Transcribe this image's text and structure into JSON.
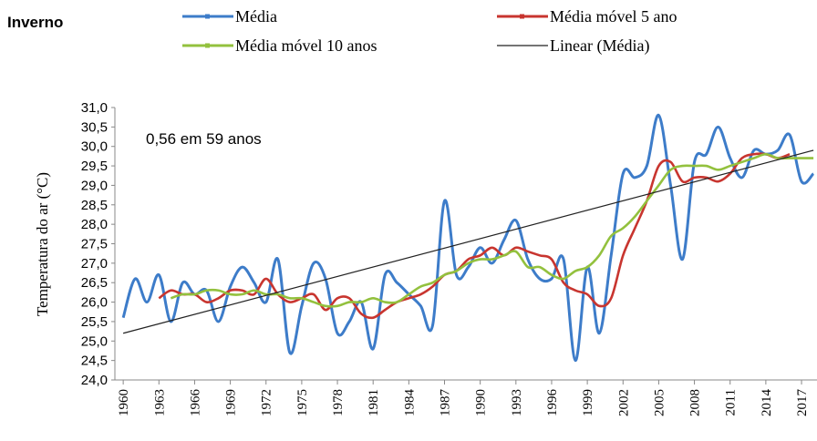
{
  "chart_data": {
    "type": "line",
    "title": "Inverno",
    "y_label": "Temperatura do ar (°C)",
    "annotation": "0,56 em 59 anos",
    "x": [
      1960,
      1961,
      1962,
      1963,
      1964,
      1965,
      1966,
      1967,
      1968,
      1969,
      1970,
      1971,
      1972,
      1973,
      1974,
      1975,
      1976,
      1977,
      1978,
      1979,
      1980,
      1981,
      1982,
      1983,
      1984,
      1985,
      1986,
      1987,
      1988,
      1989,
      1990,
      1991,
      1992,
      1993,
      1994,
      1995,
      1996,
      1997,
      1998,
      1999,
      2000,
      2001,
      2002,
      2003,
      2004,
      2005,
      2006,
      2007,
      2008,
      2009,
      2010,
      2011,
      2012,
      2013,
      2014,
      2015,
      2016,
      2017,
      2018
    ],
    "xlim": [
      1959.3,
      2018.3
    ],
    "xticks": [
      1960,
      1963,
      1966,
      1969,
      1972,
      1975,
      1978,
      1981,
      1984,
      1987,
      1990,
      1993,
      1996,
      1999,
      2002,
      2005,
      2008,
      2011,
      2014,
      2017
    ],
    "ylim": [
      24,
      31
    ],
    "yticks": [
      {
        "value": 24,
        "label": "24,0"
      },
      {
        "value": 24.5,
        "label": "24,5"
      },
      {
        "value": 25,
        "label": "25,0"
      },
      {
        "value": 25.5,
        "label": "25,5"
      },
      {
        "value": 26,
        "label": "26,0"
      },
      {
        "value": 26.5,
        "label": "26,5"
      },
      {
        "value": 27,
        "label": "27,0"
      },
      {
        "value": 27.5,
        "label": "27,5"
      },
      {
        "value": 28,
        "label": "28,0"
      },
      {
        "value": 28.5,
        "label": "28,5"
      },
      {
        "value": 29,
        "label": "29,0"
      },
      {
        "value": 29.5,
        "label": "29,5"
      },
      {
        "value": 30,
        "label": "30,0"
      },
      {
        "value": 30.5,
        "label": "30,5"
      },
      {
        "value": 31,
        "label": "31,0"
      }
    ],
    "grid": false,
    "series": [
      {
        "name": "Média",
        "color": "#3d7cc9",
        "values": [
          25.6,
          26.6,
          26.0,
          26.7,
          25.5,
          26.5,
          26.2,
          26.3,
          25.5,
          26.4,
          26.9,
          26.5,
          26.0,
          27.1,
          24.7,
          25.9,
          27.0,
          26.6,
          25.2,
          25.5,
          26.0,
          24.8,
          26.7,
          26.5,
          26.2,
          25.9,
          25.4,
          28.6,
          26.7,
          26.9,
          27.4,
          27.0,
          27.6,
          28.1,
          27.1,
          26.6,
          26.6,
          27.1,
          24.5,
          26.9,
          25.2,
          27.2,
          29.3,
          29.2,
          29.5,
          30.8,
          29.0,
          27.1,
          29.6,
          29.8,
          30.5,
          29.7,
          29.2,
          29.9,
          29.8,
          29.9,
          30.3,
          29.1,
          29.3
        ]
      },
      {
        "name": "Média móvel 5 ano",
        "color": "#c8352f",
        "values": [
          null,
          null,
          null,
          26.1,
          26.3,
          26.2,
          26.2,
          26.0,
          26.1,
          26.3,
          26.3,
          26.2,
          26.6,
          26.2,
          26.0,
          26.1,
          26.2,
          25.8,
          26.1,
          26.1,
          25.7,
          25.6,
          25.8,
          26.0,
          26.1,
          26.2,
          26.4,
          26.7,
          26.8,
          27.1,
          27.2,
          27.4,
          27.2,
          27.4,
          27.3,
          27.2,
          27.1,
          26.5,
          26.3,
          26.2,
          25.9,
          26.1,
          27.2,
          27.9,
          28.6,
          29.5,
          29.6,
          29.1,
          29.2,
          29.2,
          29.1,
          29.3,
          29.7,
          29.8,
          29.8,
          29.7,
          29.8,
          null,
          null
        ]
      },
      {
        "name": "Média móvel 10 anos",
        "color": "#93c13e",
        "values": [
          null,
          null,
          null,
          null,
          26.1,
          26.2,
          26.2,
          26.3,
          26.3,
          26.2,
          26.2,
          26.3,
          26.2,
          26.2,
          26.1,
          26.1,
          26.0,
          25.9,
          25.9,
          26.0,
          26.0,
          26.1,
          26.0,
          26.0,
          26.2,
          26.4,
          26.5,
          26.7,
          26.8,
          27.0,
          27.1,
          27.1,
          27.2,
          27.3,
          26.9,
          26.9,
          26.7,
          26.6,
          26.8,
          26.9,
          27.2,
          27.7,
          27.9,
          28.2,
          28.6,
          29.0,
          29.4,
          29.5,
          29.5,
          29.5,
          29.4,
          29.5,
          29.6,
          29.7,
          29.8,
          29.7,
          29.7,
          29.7,
          29.7
        ]
      }
    ],
    "trendline": {
      "name": "Linear (Média)",
      "color": "#222222",
      "x": [
        1960,
        2018
      ],
      "values": [
        25.2,
        29.9
      ]
    }
  }
}
